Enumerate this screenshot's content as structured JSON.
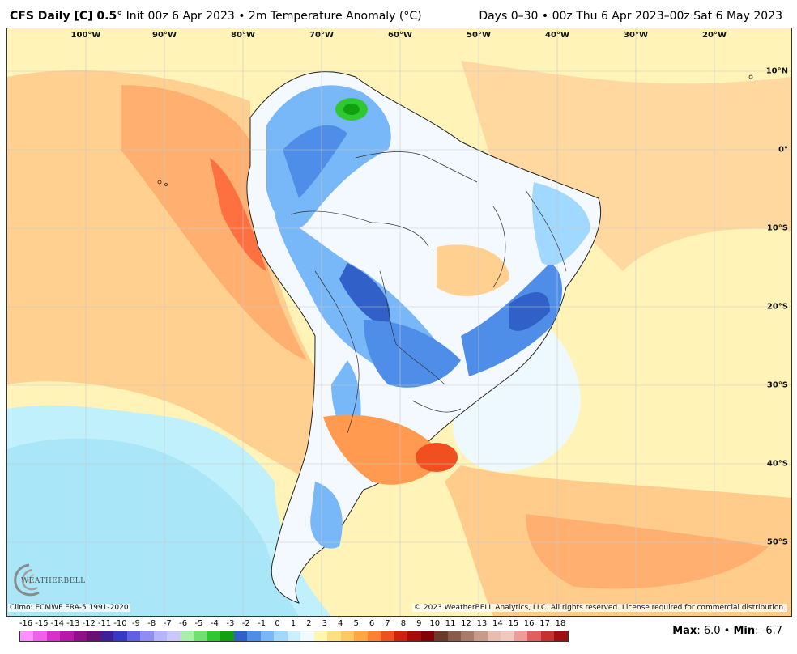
{
  "header": {
    "title_bold": "CFS Daily [C] 0.5",
    "title_rest": "° Init 00z 6 Apr 2023 • 2m Temperature Anomaly (°C)",
    "range": "Days 0–30 • 00z Thu 6 Apr 2023–00z Sat 6 May 2023"
  },
  "map": {
    "lon_labels": [
      "100°W",
      "90°W",
      "80°W",
      "70°W",
      "60°W",
      "50°W",
      "40°W",
      "30°W",
      "20°W"
    ],
    "lat_labels": [
      "10°N",
      "0°",
      "10°S",
      "20°S",
      "30°S",
      "40°S",
      "50°S"
    ]
  },
  "footer": {
    "climo": "Climo: ECMWF ERA-5 1991-2020",
    "copyright": "© 2023 WeatherBELL Analytics, LLC. All rights reserved. License required for commercial distribution.",
    "logo_text": "WEATHERBELL",
    "max_label": "Max",
    "max_value": ": 6.0 • ",
    "min_label": "Min",
    "min_value": ": -6.7"
  },
  "colorbar": {
    "labels": [
      "-16",
      "-15",
      "-14",
      "-13",
      "-12",
      "-11",
      "-10",
      "-9",
      "-8",
      "-7",
      "-6",
      "-5",
      "-4",
      "-3",
      "-2",
      "-1",
      "0",
      "1",
      "2",
      "3",
      "4",
      "5",
      "6",
      "7",
      "8",
      "9",
      "10",
      "11",
      "12",
      "13",
      "14",
      "15",
      "16",
      "17",
      "18"
    ],
    "colors": [
      "#ff90ff",
      "#f060e8",
      "#d830c8",
      "#b818a8",
      "#901088",
      "#6a1070",
      "#40209a",
      "#3838c8",
      "#6060e0",
      "#8e8ef0",
      "#b4b4ff",
      "#c8c8ff",
      "#a8f0a8",
      "#70e070",
      "#30c830",
      "#10a010",
      "#3060c8",
      "#4e8ee8",
      "#78b8f8",
      "#a0d8ff",
      "#c8f0ff",
      "#f0faff",
      "#fff6b0",
      "#ffe080",
      "#ffc860",
      "#ffa840",
      "#ff8030",
      "#f05020",
      "#d02010",
      "#a80c08",
      "#800404",
      "#6a3a2a",
      "#8a5a4a",
      "#aa7a6a",
      "#c89a8a",
      "#e8bcb0",
      "#f0c8c0",
      "#f09a9a",
      "#e06060",
      "#c83030",
      "#a01010"
    ]
  }
}
